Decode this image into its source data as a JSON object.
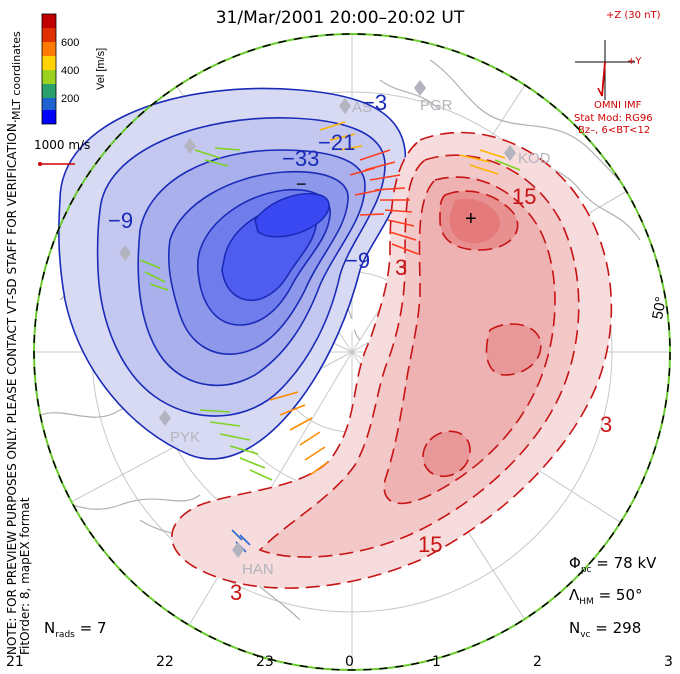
{
  "title": "31/Mar/2001 20:00–20:02 UT",
  "side_note_line1": "NOTE: FOR PREVIEW PURPOSES ONLY. PLEASE CONTACT VT-SD STAFF FOR VERIFICATION.",
  "side_note_line2": "FitOrder: 8, mapEX format",
  "mlt_label": "MLT coordinates",
  "colorbar": {
    "label": "Vel [m/s]",
    "ticks": [
      "600",
      "400",
      "200"
    ],
    "colors": [
      "#0000ff",
      "#1e62d0",
      "#2aa06a",
      "#9bd21e",
      "#ffd200",
      "#ff7a00",
      "#e03000",
      "#c00000"
    ]
  },
  "scale_vector": "1000 m/s",
  "imf": {
    "z_label": "+Z (30 nT)",
    "y_label": "+Y",
    "source": "OMNI IMF",
    "stat_mod": "Stat Mod: RG96",
    "bz": "Bz–, 6<BT<12"
  },
  "stations": [
    "PGR",
    "KOD",
    "AS",
    "PYK",
    "HAN"
  ],
  "contour_labels": {
    "negative": [
      "−9",
      "−21",
      "−33",
      "−9",
      "−3"
    ],
    "positive": [
      "15",
      "3",
      "15",
      "3"
    ]
  },
  "extrema": {
    "min_symbol": "−",
    "max_symbol": "+"
  },
  "latitude_label": "50°",
  "stats": {
    "phi_pc_label": "Φ",
    "phi_pc_sub": "pc",
    "phi_pc_value": "= 78 kV",
    "lambda_hm_label": "Λ",
    "lambda_hm_sub": "HM",
    "lambda_hm_value": "= 50°",
    "n_vc_label": "N",
    "n_vc_sub": "vc",
    "n_vc_value": "= 298",
    "n_rads_label": "N",
    "n_rads_sub": "rads",
    "n_rads_value": "= 7"
  },
  "mlt_ticks": [
    "21",
    "22",
    "23",
    "0",
    "1",
    "2",
    "3"
  ]
}
